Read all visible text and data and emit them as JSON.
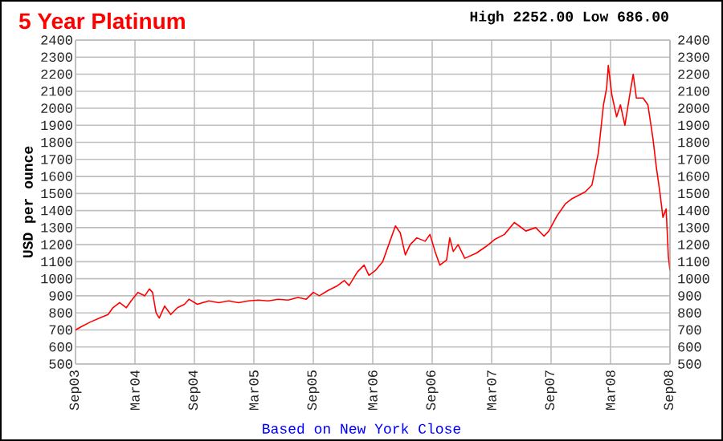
{
  "chart_data": {
    "type": "line",
    "title": "5 Year Platinum",
    "subtitle": "High 2252.00 Low 686.00",
    "ylabel": "USD per ounce",
    "annotations": [
      "Based on New York Close"
    ],
    "x": [
      "2003-09-01",
      "2003-09-20",
      "2003-10-15",
      "2003-11-15",
      "2003-12-10",
      "2003-12-25",
      "2004-01-15",
      "2004-02-05",
      "2004-02-20",
      "2004-03-10",
      "2004-04-01",
      "2004-04-15",
      "2004-04-25",
      "2004-05-05",
      "2004-05-15",
      "2004-06-01",
      "2004-06-20",
      "2004-07-10",
      "2004-08-01",
      "2004-08-15",
      "2004-09-10",
      "2004-10-15",
      "2004-11-15",
      "2004-12-15",
      "2005-01-15",
      "2005-02-15",
      "2005-03-15",
      "2005-04-15",
      "2005-05-15",
      "2005-06-15",
      "2005-07-15",
      "2005-08-10",
      "2005-09-01",
      "2005-09-20",
      "2005-10-15",
      "2005-11-15",
      "2005-12-05",
      "2005-12-20",
      "2006-01-15",
      "2006-02-05",
      "2006-02-20",
      "2006-03-10",
      "2006-04-01",
      "2006-04-20",
      "2006-05-10",
      "2006-05-25",
      "2006-06-10",
      "2006-06-25",
      "2006-07-15",
      "2006-08-10",
      "2006-08-25",
      "2006-09-10",
      "2006-09-25",
      "2006-10-15",
      "2006-10-25",
      "2006-11-05",
      "2006-11-20",
      "2006-12-10",
      "2007-01-15",
      "2007-02-15",
      "2007-03-10",
      "2007-04-10",
      "2007-05-10",
      "2007-05-25",
      "2007-06-15",
      "2007-07-15",
      "2007-08-10",
      "2007-08-25",
      "2007-09-20",
      "2007-10-15",
      "2007-11-05",
      "2007-12-15",
      "2008-01-05",
      "2008-01-25",
      "2008-02-10",
      "2008-02-20",
      "2008-02-25",
      "2008-03-05",
      "2008-03-20",
      "2008-04-01",
      "2008-04-15",
      "2008-05-01",
      "2008-05-10",
      "2008-05-20",
      "2008-06-10",
      "2008-06-25",
      "2008-07-10",
      "2008-07-20",
      "2008-08-01",
      "2008-08-10",
      "2008-08-20",
      "2008-08-27",
      "2008-09-01"
    ],
    "series": [
      {
        "color": "#ff0000",
        "values": [
          700,
          720,
          745,
          770,
          790,
          830,
          860,
          830,
          870,
          920,
          900,
          940,
          920,
          800,
          770,
          840,
          790,
          830,
          850,
          880,
          850,
          870,
          860,
          870,
          860,
          870,
          875,
          870,
          880,
          875,
          890,
          880,
          920,
          900,
          930,
          960,
          990,
          960,
          1040,
          1080,
          1020,
          1050,
          1100,
          1200,
          1310,
          1270,
          1140,
          1200,
          1240,
          1220,
          1260,
          1160,
          1080,
          1110,
          1240,
          1160,
          1200,
          1120,
          1150,
          1190,
          1230,
          1260,
          1330,
          1310,
          1280,
          1300,
          1250,
          1280,
          1370,
          1440,
          1470,
          1510,
          1550,
          1740,
          2020,
          2120,
          2252,
          2080,
          1950,
          2020,
          1900,
          2100,
          2200,
          2060,
          2060,
          2020,
          1820,
          1660,
          1500,
          1360,
          1410,
          1130,
          1050
        ]
      }
    ],
    "xlim": [
      "2003-09",
      "2008-09"
    ],
    "xticks": [
      {
        "value": "2003-09",
        "label": "Sep03"
      },
      {
        "value": "2004-03",
        "label": "Mar04"
      },
      {
        "value": "2004-09",
        "label": "Sep04"
      },
      {
        "value": "2005-03",
        "label": "Mar05"
      },
      {
        "value": "2005-09",
        "label": "Sep05"
      },
      {
        "value": "2006-03",
        "label": "Mar06"
      },
      {
        "value": "2006-09",
        "label": "Sep06"
      },
      {
        "value": "2007-03",
        "label": "Mar07"
      },
      {
        "value": "2007-09",
        "label": "Sep07"
      },
      {
        "value": "2008-03",
        "label": "Mar08"
      },
      {
        "value": "2008-09",
        "label": "Sep08"
      }
    ],
    "ylim": [
      500,
      2400
    ],
    "yticks": [
      500,
      600,
      700,
      800,
      900,
      1000,
      1100,
      1200,
      1300,
      1400,
      1500,
      1600,
      1700,
      1800,
      1900,
      2000,
      2100,
      2200,
      2300,
      2400
    ],
    "y2lim": [
      500,
      2400
    ],
    "y2ticks": [
      500,
      600,
      700,
      800,
      900,
      1000,
      1100,
      1200,
      1300,
      1400,
      1500,
      1600,
      1700,
      1800,
      1900,
      2000,
      2100,
      2200,
      2300,
      2400
    ],
    "grid": true,
    "marker": "none",
    "line_style": "solid"
  }
}
